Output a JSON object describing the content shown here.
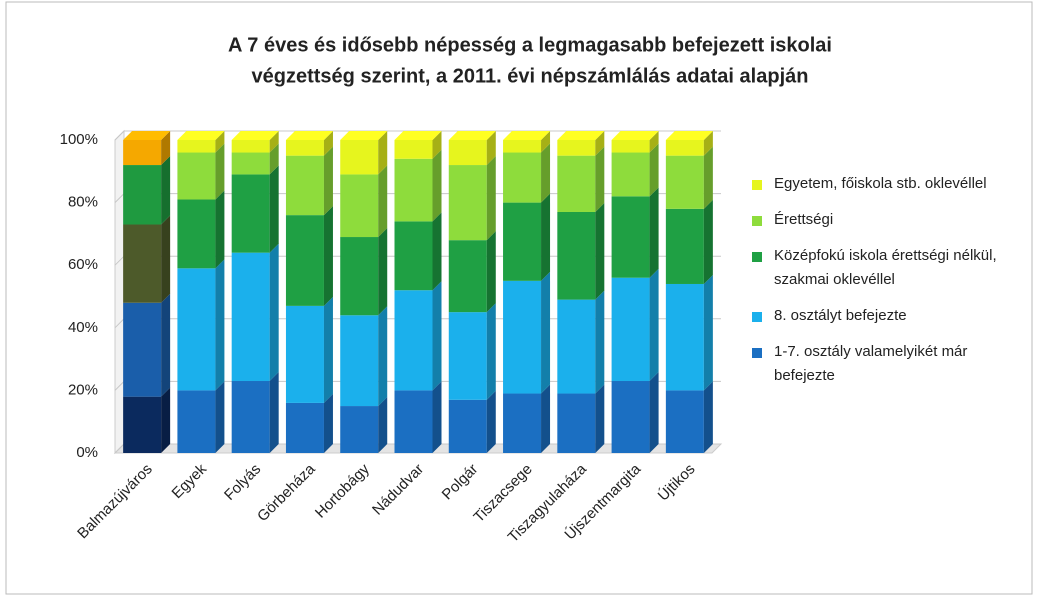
{
  "chart_data": {
    "type": "stacked_bar_3d",
    "title": [
      "A 7 éves és idősebb népesség a legmagasabb befejezett iskolai",
      "végzettség szerint, a 2011. évi népszámlálás adatai alapján"
    ],
    "categories": [
      "Balmazújváros",
      "Egyek",
      "Folyás",
      "Görbeháza",
      "Hortobágy",
      "Nádudvar",
      "Polgár",
      "Tiszacsege",
      "Tiszagyulaháza",
      "Újszentmargita",
      "Újtikos"
    ],
    "series": [
      {
        "name": "1-7. osztály valamelyikét már befejezte",
        "color": "#1b6fc2",
        "colors": [
          "#0b2a5e",
          "#1b6fc2",
          "#1b6fc2",
          "#1b6fc2",
          "#1b6fc2",
          "#1b6fc2",
          "#1b6fc2",
          "#1b6fc2",
          "#1b6fc2",
          "#1b6fc2",
          "#1b6fc2"
        ],
        "values": [
          18,
          20,
          23,
          16,
          15,
          20,
          17,
          19,
          19,
          23,
          20
        ]
      },
      {
        "name": "8. osztályt befejezte",
        "color": "#1bb0ec",
        "colors": [
          "#1a5eaa",
          "#1bb0ec",
          "#1bb0ec",
          "#1bb0ec",
          "#1bb0ec",
          "#1bb0ec",
          "#1bb0ec",
          "#1bb0ec",
          "#1bb0ec",
          "#1bb0ec",
          "#1bb0ec"
        ],
        "values": [
          30,
          39,
          41,
          31,
          29,
          32,
          28,
          36,
          30,
          33,
          34
        ]
      },
      {
        "name": "Középfokú iskola érettségi nélkül, szakmai oklevéllel",
        "color": "#1fa044",
        "colors": [
          "#4d5a2a",
          "#1fa044",
          "#1fa044",
          "#1fa044",
          "#1fa044",
          "#1fa044",
          "#1fa044",
          "#1fa044",
          "#1fa044",
          "#1fa044",
          "#1fa044"
        ],
        "values": [
          25,
          22,
          25,
          29,
          25,
          22,
          23,
          25,
          28,
          26,
          24
        ]
      },
      {
        "name": "Érettségi",
        "color": "#8edc3c",
        "colors": [
          "#1f9a40",
          "#8edc3c",
          "#8edc3c",
          "#8edc3c",
          "#8edc3c",
          "#8edc3c",
          "#8edc3c",
          "#8edc3c",
          "#8edc3c",
          "#8edc3c",
          "#8edc3c"
        ],
        "values": [
          19,
          15,
          7,
          19,
          20,
          20,
          24,
          16,
          18,
          14,
          17
        ]
      },
      {
        "name": "Egyetem, főiskola stb. oklevéllel",
        "color": "#e6f51e",
        "colors": [
          "#f5a800",
          "#e6f51e",
          "#e6f51e",
          "#e6f51e",
          "#e6f51e",
          "#e6f51e",
          "#e6f51e",
          "#e6f51e",
          "#e6f51e",
          "#e6f51e",
          "#e6f51e"
        ],
        "values": [
          8,
          4,
          4,
          5,
          11,
          6,
          8,
          4,
          5,
          4,
          5
        ]
      }
    ],
    "ylim": [
      0,
      100
    ],
    "yticks": [
      {
        "value": 0,
        "label": "0%"
      },
      {
        "value": 20,
        "label": "20%"
      },
      {
        "value": 40,
        "label": "40%"
      },
      {
        "value": 60,
        "label": "60%"
      },
      {
        "value": 80,
        "label": "80%"
      },
      {
        "value": 100,
        "label": "100%"
      }
    ],
    "grid": true,
    "legend": "right"
  }
}
